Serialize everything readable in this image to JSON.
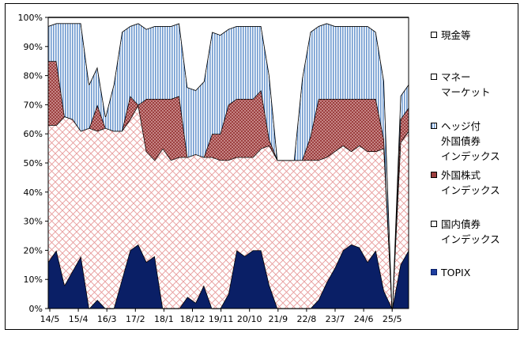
{
  "chart_data": {
    "type": "area",
    "stacked": true,
    "title": "",
    "xlabel": "",
    "ylabel": "",
    "ylim": [
      0,
      100
    ],
    "y_ticks": [
      "0%",
      "10%",
      "20%",
      "30%",
      "40%",
      "50%",
      "60%",
      "70%",
      "80%",
      "90%",
      "100%"
    ],
    "x_ticks": [
      "14/5",
      "15/4",
      "16/3",
      "17/2",
      "18/1",
      "18/12",
      "19/11",
      "20/10",
      "21/9",
      "22/8",
      "23/7",
      "24/6",
      "25/5"
    ],
    "legend_position": "right",
    "grid": false,
    "series": [
      {
        "name": "TOPIX",
        "color": "#0a1f66",
        "pattern": "solid",
        "values": [
          16,
          20,
          8,
          13,
          18,
          0,
          3,
          0,
          0,
          10,
          20,
          22,
          16,
          18,
          0,
          0,
          0,
          4,
          2,
          8,
          0,
          0,
          5,
          20,
          18,
          20,
          20,
          8,
          0,
          0,
          0,
          0,
          0,
          3,
          9,
          14,
          20,
          22,
          21,
          16,
          20,
          6,
          0,
          15,
          20
        ]
      },
      {
        "name": "国内債券\nインデックス",
        "color": "#ffffff",
        "pattern": "cross-hatch-pink",
        "values": [
          47,
          43,
          58,
          52,
          43,
          62,
          58,
          62,
          61,
          51,
          45,
          48,
          38,
          33,
          55,
          51,
          52,
          48,
          51,
          44,
          52,
          51,
          46,
          32,
          34,
          32,
          35,
          48,
          51,
          51,
          51,
          51,
          51,
          48,
          43,
          40,
          36,
          32,
          35,
          38,
          34,
          49,
          0,
          42,
          41
        ]
      },
      {
        "name": "外国株式\nインデックス",
        "color": "#a85050",
        "pattern": "dots",
        "values": [
          22,
          22,
          0,
          0,
          0,
          0,
          9,
          0,
          0,
          0,
          8,
          0,
          18,
          21,
          17,
          21,
          21,
          0,
          0,
          0,
          8,
          9,
          19,
          20,
          20,
          20,
          20,
          2,
          0,
          0,
          0,
          0,
          8,
          21,
          20,
          18,
          16,
          18,
          16,
          18,
          18,
          3,
          0,
          8,
          8
        ]
      },
      {
        "name": "ヘッジ付\n外国債券\nインデックス",
        "color": "#a8c8ec",
        "pattern": "vertical-stripes",
        "values": [
          12,
          13,
          32,
          33,
          37,
          15,
          13,
          4,
          16,
          34,
          24,
          28,
          24,
          25,
          25,
          25,
          25,
          24,
          22,
          26,
          35,
          34,
          26,
          25,
          25,
          25,
          22,
          22,
          0,
          0,
          0,
          28,
          36,
          25,
          26,
          25,
          25,
          25,
          25,
          25,
          23,
          20,
          0,
          8,
          8
        ]
      },
      {
        "name": "マネー\nマーケット",
        "color": "#ffffff",
        "pattern": "solid",
        "values": [
          0,
          0,
          0,
          0,
          0,
          0,
          0,
          0,
          0,
          0,
          0,
          0,
          0,
          0,
          0,
          0,
          0,
          0,
          0,
          0,
          0,
          0,
          0,
          0,
          0,
          0,
          0,
          0,
          0,
          0,
          0,
          0,
          0,
          0,
          0,
          0,
          0,
          0,
          0,
          0,
          0,
          0,
          0,
          0,
          0
        ]
      },
      {
        "name": "現金等",
        "color": "#ffffff",
        "pattern": "solid",
        "values": [
          3,
          2,
          2,
          2,
          2,
          23,
          17,
          34,
          23,
          5,
          3,
          2,
          4,
          3,
          3,
          3,
          2,
          24,
          25,
          22,
          5,
          6,
          4,
          3,
          3,
          3,
          3,
          20,
          49,
          49,
          49,
          21,
          5,
          3,
          2,
          3,
          3,
          3,
          3,
          3,
          5,
          22,
          100,
          27,
          23
        ]
      }
    ]
  }
}
